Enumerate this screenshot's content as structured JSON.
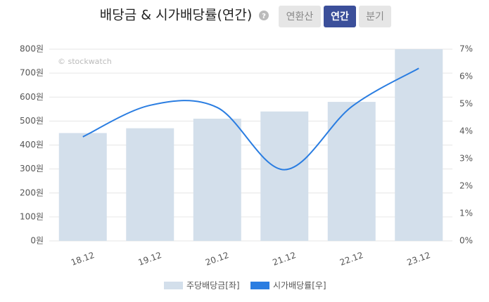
{
  "title": "배당금 & 시가배당률(연간)",
  "help": "?",
  "buttons": [
    "연환산",
    "연간",
    "분기"
  ],
  "watermark": "© stockwatch",
  "chart_data": {
    "type": "bar-line",
    "categories": [
      "18.12",
      "19.12",
      "20.12",
      "21.12",
      "22.12",
      "23.12"
    ],
    "series": [
      {
        "name": "주당배당금[좌]",
        "type": "bar",
        "color": "#d3dfeb",
        "values": [
          450,
          470,
          510,
          540,
          580,
          800
        ]
      },
      {
        "name": "시가배당률[우]",
        "type": "line",
        "axis": "y2",
        "color": "#2a7de1",
        "values": [
          3.8,
          4.95,
          4.87,
          2.6,
          4.9,
          6.3
        ]
      }
    ],
    "ylim": [
      0,
      800
    ],
    "yticks": [
      {
        "value": 0,
        "label": "0원"
      },
      {
        "value": 100,
        "label": "100원"
      },
      {
        "value": 200,
        "label": "200원"
      },
      {
        "value": 300,
        "label": "300원"
      },
      {
        "value": 400,
        "label": "400원"
      },
      {
        "value": 500,
        "label": "500원"
      },
      {
        "value": 600,
        "label": "600원"
      },
      {
        "value": 700,
        "label": "700원"
      },
      {
        "value": 800,
        "label": "800원"
      }
    ],
    "y2lim": [
      0,
      7
    ],
    "y2ticks": [
      {
        "value": 0,
        "label": "0%"
      },
      {
        "value": 1,
        "label": "1%"
      },
      {
        "value": 2,
        "label": "2%"
      },
      {
        "value": 3,
        "label": "3%"
      },
      {
        "value": 4,
        "label": "4%"
      },
      {
        "value": 5,
        "label": "5%"
      },
      {
        "value": 6,
        "label": "6%"
      },
      {
        "value": 7,
        "label": "7%"
      }
    ],
    "grid": true
  }
}
